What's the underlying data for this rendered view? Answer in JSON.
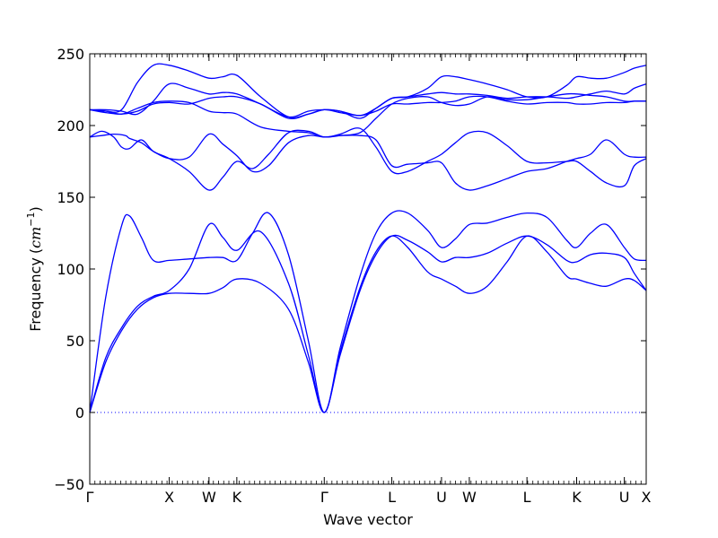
{
  "chart_data": {
    "type": "line",
    "xlabel": "Wave vector",
    "ylabel": "Frequency",
    "ylabel_unit": "cm",
    "ylabel_unit_exp": "−1",
    "ylim": [
      -50,
      250
    ],
    "yticks": [
      -50,
      0,
      50,
      100,
      150,
      200,
      250
    ],
    "ytick_labels": [
      "−50",
      "0",
      "50",
      "100",
      "150",
      "200",
      "250"
    ],
    "xlim": [
      0,
      14
    ],
    "x_ticks": [
      {
        "x": 0,
        "label": "Γ"
      },
      {
        "x": 2,
        "label": "X"
      },
      {
        "x": 3,
        "label": "W"
      },
      {
        "x": 3.7,
        "label": "K"
      },
      {
        "x": 5.9,
        "label": "Γ"
      },
      {
        "x": 7.6,
        "label": "L"
      },
      {
        "x": 8.85,
        "label": "U"
      },
      {
        "x": 9.55,
        "label": "W"
      },
      {
        "x": 11,
        "label": "L"
      },
      {
        "x": 12.25,
        "label": "K"
      },
      {
        "x": 13.45,
        "label": "U"
      },
      {
        "x": 14,
        "label": "X"
      }
    ],
    "zero_line": true,
    "grid": false,
    "line_color": "#0000ff",
    "series": [
      {
        "x": [
          0,
          0.4,
          0.8,
          1.2,
          1.6,
          2.0,
          2.5,
          3.0,
          3.35,
          3.7,
          4.3,
          5.0,
          5.5,
          5.9,
          6.3,
          6.8,
          7.2,
          7.6,
          8.0,
          8.5,
          8.85,
          9.2,
          9.55,
          10.0,
          10.5,
          11.0,
          11.5,
          12.0,
          12.25,
          12.6,
          13.0,
          13.45,
          13.7,
          14.0
        ],
        "values": [
          0,
          35,
          57,
          72,
          80,
          83,
          83,
          83,
          87,
          93,
          90,
          72,
          35,
          0,
          40,
          85,
          110,
          123,
          120,
          112,
          105,
          108,
          108,
          111,
          118,
          123,
          117,
          106,
          105,
          110,
          111,
          108,
          97,
          85
        ]
      },
      {
        "x": [
          0,
          0.4,
          0.8,
          1.2,
          1.6,
          2.0,
          2.5,
          3.0,
          3.35,
          3.7,
          4.3,
          5.0,
          5.5,
          5.9,
          6.3,
          6.8,
          7.2,
          7.6,
          8.0,
          8.5,
          8.85,
          9.2,
          9.55,
          10.0,
          10.5,
          11.0,
          11.5,
          12.0,
          12.25,
          12.6,
          13.0,
          13.45,
          13.7,
          14.0
        ],
        "values": [
          0,
          38,
          59,
          74,
          81,
          85,
          100,
          131,
          122,
          113,
          126,
          90,
          40,
          0,
          42,
          87,
          112,
          123,
          115,
          98,
          93,
          88,
          83,
          88,
          105,
          123,
          112,
          95,
          93,
          90,
          88,
          93,
          92,
          85
        ]
      },
      {
        "x": [
          0,
          0.4,
          0.8,
          1.0,
          1.3,
          1.6,
          2.0,
          2.5,
          3.0,
          3.35,
          3.7,
          4.1,
          4.5,
          5.0,
          5.5,
          5.9,
          6.3,
          6.8,
          7.2,
          7.6,
          8.0,
          8.5,
          8.85,
          9.2,
          9.55,
          10.0,
          10.5,
          11.0,
          11.5,
          12.0,
          12.25,
          12.6,
          13.0,
          13.45,
          13.7,
          14.0
        ],
        "values": [
          0,
          80,
          130,
          137,
          122,
          106,
          106,
          107,
          108,
          108,
          106,
          125,
          139,
          110,
          50,
          0,
          45,
          95,
          125,
          139,
          139,
          127,
          115,
          121,
          131,
          132,
          136,
          139,
          136,
          120,
          115,
          125,
          131,
          115,
          107,
          106
        ]
      },
      {
        "x": [
          0,
          0.3,
          0.6,
          0.9,
          1.0,
          1.3,
          1.6,
          2.0,
          2.5,
          3.0,
          3.35,
          3.7,
          4.1,
          4.5,
          5.0,
          5.5,
          5.9,
          6.3,
          6.8,
          7.2,
          7.6,
          8.0,
          8.5,
          8.85,
          9.2,
          9.55,
          10.0,
          10.5,
          11.0,
          11.5,
          12.0,
          12.25,
          12.6,
          13.0,
          13.45,
          13.7,
          14.0
        ],
        "values": [
          192,
          193,
          194,
          193,
          191,
          188,
          182,
          177,
          178,
          194,
          187,
          179,
          168,
          172,
          188,
          193,
          192,
          193,
          193,
          190,
          172,
          173,
          174,
          174,
          160,
          155,
          158,
          163,
          168,
          170,
          175,
          177,
          180,
          190,
          180,
          178,
          178
        ]
      },
      {
        "x": [
          0,
          0.3,
          0.6,
          0.8,
          1.0,
          1.3,
          1.6,
          2.0,
          2.5,
          3.0,
          3.35,
          3.7,
          4.1,
          4.5,
          5.0,
          5.5,
          5.9,
          6.3,
          6.8,
          7.2,
          7.6,
          8.0,
          8.5,
          8.85,
          9.2,
          9.55,
          10.0,
          10.5,
          11.0,
          11.5,
          12.0,
          12.25,
          12.6,
          13.0,
          13.45,
          13.7,
          14.0
        ],
        "values": [
          192,
          196,
          192,
          185,
          184,
          190,
          182,
          177,
          168,
          155,
          164,
          175,
          170,
          180,
          195,
          196,
          192,
          194,
          198,
          185,
          168,
          168,
          175,
          180,
          188,
          195,
          195,
          186,
          175,
          174,
          175,
          175,
          168,
          160,
          158,
          172,
          177
        ]
      },
      {
        "x": [
          0,
          0.4,
          0.8,
          1.2,
          1.6,
          2.0,
          2.5,
          3.0,
          3.35,
          3.7,
          4.3,
          5.0,
          5.5,
          5.9,
          6.3,
          6.8,
          7.2,
          7.6,
          8.0,
          8.5,
          8.85,
          9.2,
          9.55,
          10.0,
          10.5,
          11.0,
          11.5,
          12.0,
          12.25,
          12.6,
          13.0,
          13.45,
          13.7,
          14.0
        ],
        "values": [
          211,
          210,
          208,
          212,
          216,
          217,
          216,
          210,
          209,
          208,
          199,
          196,
          195,
          192,
          193,
          195,
          205,
          215,
          219,
          220,
          216,
          214,
          215,
          220,
          218,
          218,
          220,
          222,
          222,
          221,
          220,
          217,
          217,
          217
        ]
      },
      {
        "x": [
          0,
          0.4,
          0.8,
          1.2,
          1.6,
          2.0,
          2.5,
          3.0,
          3.35,
          3.7,
          4.3,
          5.0,
          5.5,
          5.9,
          6.3,
          6.8,
          7.2,
          7.6,
          8.0,
          8.5,
          8.85,
          9.2,
          9.55,
          10.0,
          10.5,
          11.0,
          11.5,
          12.0,
          12.25,
          12.6,
          13.0,
          13.45,
          13.7,
          14.0
        ],
        "values": [
          211,
          209,
          208,
          210,
          215,
          216,
          215,
          219,
          220,
          220,
          215,
          205,
          208,
          211,
          209,
          207,
          210,
          215,
          215,
          216,
          216,
          217,
          220,
          220,
          217,
          215,
          216,
          216,
          215,
          215,
          216,
          216,
          217,
          217
        ]
      },
      {
        "x": [
          0,
          0.4,
          0.8,
          1.2,
          1.6,
          2.0,
          2.5,
          3.0,
          3.35,
          3.7,
          4.3,
          5.0,
          5.5,
          5.9,
          6.3,
          6.8,
          7.2,
          7.6,
          8.0,
          8.5,
          8.85,
          9.2,
          9.55,
          10.0,
          10.5,
          11.0,
          11.5,
          12.0,
          12.25,
          12.6,
          13.0,
          13.45,
          13.7,
          14.0
        ],
        "values": [
          211,
          211,
          210,
          208,
          217,
          229,
          226,
          222,
          223,
          222,
          215,
          206,
          210,
          211,
          210,
          207,
          212,
          219,
          220,
          222,
          223,
          222,
          222,
          221,
          219,
          220,
          220,
          219,
          220,
          222,
          224,
          222,
          226,
          229
        ]
      },
      {
        "x": [
          0,
          0.4,
          0.8,
          1.2,
          1.6,
          2.0,
          2.5,
          3.0,
          3.35,
          3.7,
          4.3,
          5.0,
          5.5,
          5.9,
          6.3,
          6.8,
          7.2,
          7.6,
          8.0,
          8.5,
          8.85,
          9.2,
          9.55,
          10.0,
          10.5,
          11.0,
          11.5,
          12.0,
          12.25,
          12.6,
          13.0,
          13.45,
          13.7,
          14.0
        ],
        "values": [
          211,
          210,
          211,
          230,
          242,
          242,
          238,
          233,
          234,
          235,
          220,
          206,
          208,
          211,
          210,
          205,
          212,
          219,
          220,
          226,
          234,
          234,
          232,
          229,
          225,
          220,
          220,
          228,
          234,
          233,
          233,
          237,
          240,
          242
        ]
      }
    ]
  }
}
